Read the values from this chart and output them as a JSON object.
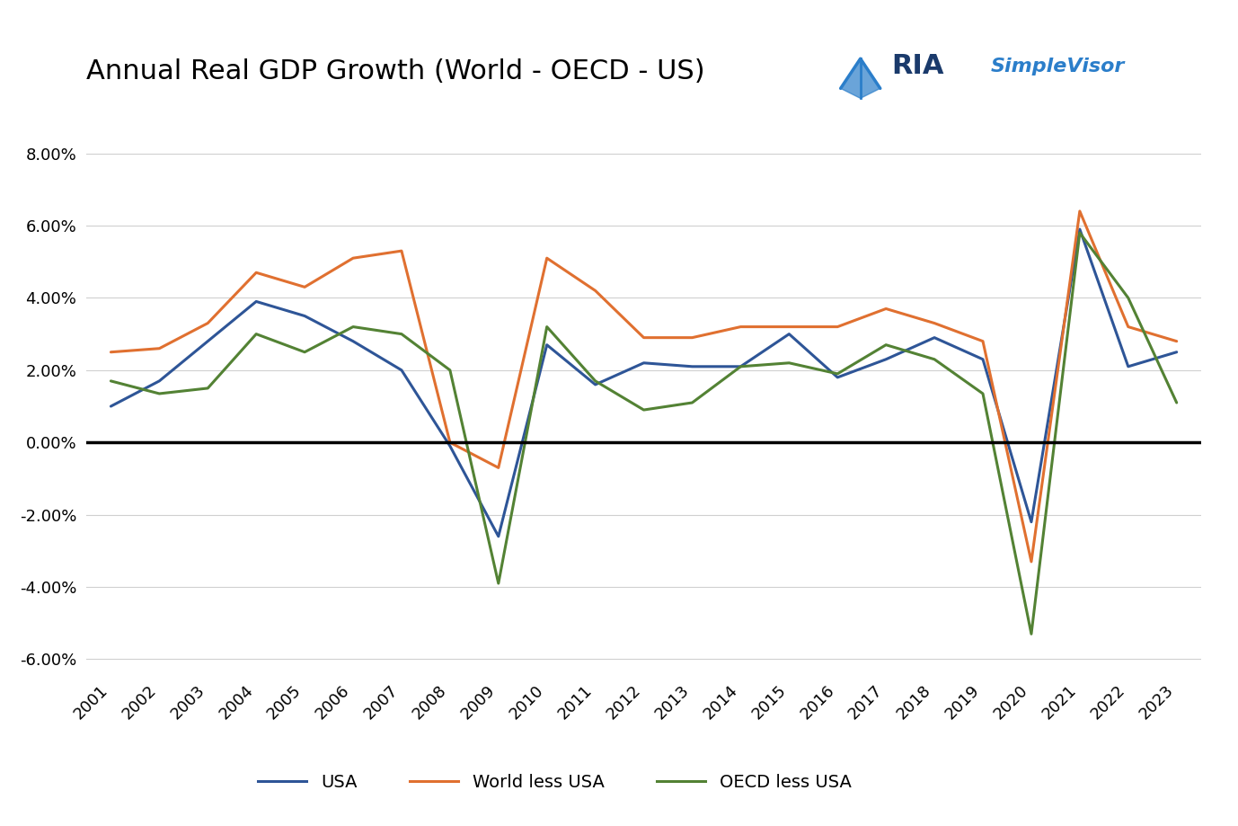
{
  "title": "Annual Real GDP Growth (World - OECD - US)",
  "years": [
    2001,
    2002,
    2003,
    2004,
    2005,
    2006,
    2007,
    2008,
    2009,
    2010,
    2011,
    2012,
    2013,
    2014,
    2015,
    2016,
    2017,
    2018,
    2019,
    2020,
    2021,
    2022,
    2023
  ],
  "usa": [
    1.0,
    1.7,
    2.8,
    3.9,
    3.5,
    2.8,
    2.0,
    -0.1,
    -2.6,
    2.7,
    1.6,
    2.2,
    2.1,
    2.1,
    3.0,
    1.8,
    2.3,
    2.9,
    2.3,
    -2.2,
    5.9,
    2.1,
    2.5
  ],
  "world_less_usa": [
    2.5,
    2.6,
    3.3,
    4.7,
    4.3,
    5.1,
    5.3,
    0.0,
    -0.7,
    5.1,
    4.2,
    2.9,
    2.9,
    3.2,
    3.2,
    3.2,
    3.7,
    3.3,
    2.8,
    -3.3,
    6.4,
    3.2,
    2.8
  ],
  "oecd_less_usa": [
    1.7,
    1.35,
    1.5,
    3.0,
    2.5,
    3.2,
    3.0,
    2.0,
    -3.9,
    3.2,
    1.7,
    0.9,
    1.1,
    2.1,
    2.2,
    1.9,
    2.7,
    2.3,
    1.35,
    -5.3,
    5.8,
    4.0,
    1.1
  ],
  "legend": [
    "USA",
    "World less USA",
    "OECD less USA"
  ],
  "colors": {
    "usa": "#2E5597",
    "world_less_usa": "#E07030",
    "oecd_less_usa": "#538234"
  },
  "ylim": [
    -6.5,
    9.5
  ],
  "yticks": [
    -6.0,
    -4.0,
    -2.0,
    0.0,
    2.0,
    4.0,
    6.0,
    8.0
  ],
  "background_color": "#ffffff",
  "grid_color": "#d0d0d0",
  "zeroline_color": "#000000",
  "title_fontsize": 22,
  "tick_fontsize": 13,
  "legend_fontsize": 14,
  "linewidth": 2.2,
  "ria_color": "#1a3a6b",
  "simplevisor_color": "#2B7ECA",
  "ria_fontsize": 22,
  "simplevisor_fontsize": 16
}
